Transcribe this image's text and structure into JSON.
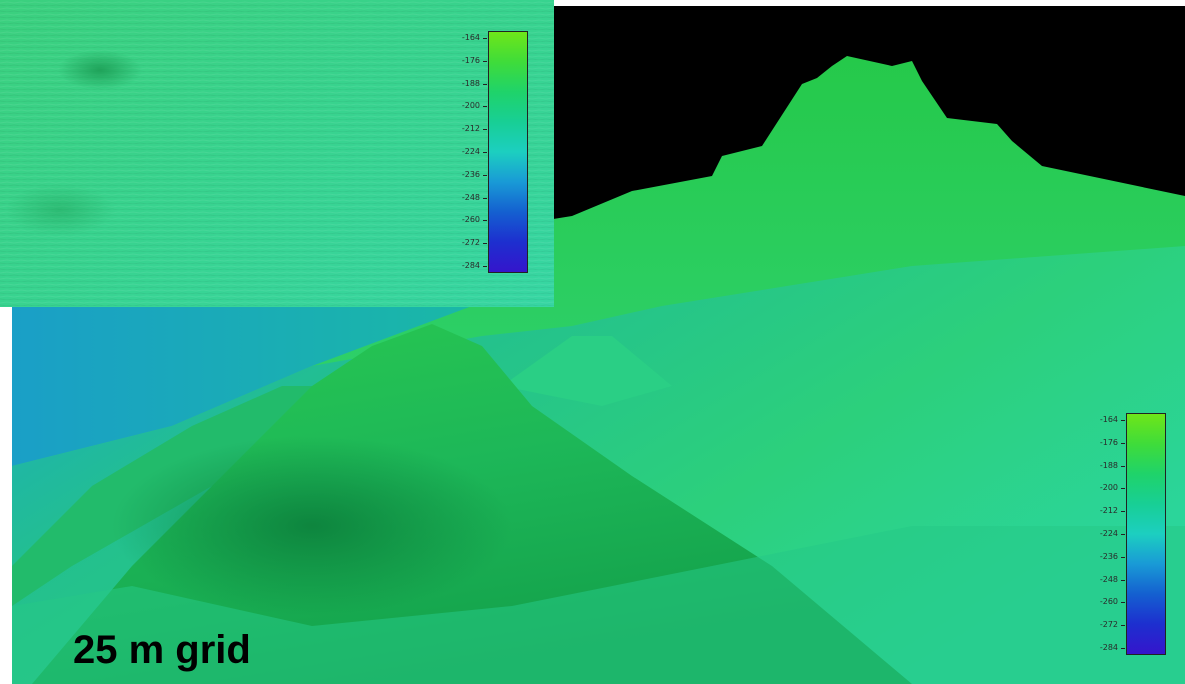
{
  "caption": {
    "text": "25 m grid"
  },
  "colorbar": {
    "ticks": [
      "-164",
      "-176",
      "-188",
      "-200",
      "-212",
      "-224",
      "-236",
      "-248",
      "-260",
      "-272",
      "-284"
    ],
    "colors": [
      "#6ee619",
      "#3fdc3a",
      "#1fd36a",
      "#18cf95",
      "#1ccfc0",
      "#199ad6",
      "#1460d0",
      "#1d2fcf",
      "#3515cc"
    ]
  },
  "scene": {
    "sky_color": "#000000",
    "terrain_main_color": "#2ed07a",
    "terrain_deep_color": "#1aaec6"
  }
}
